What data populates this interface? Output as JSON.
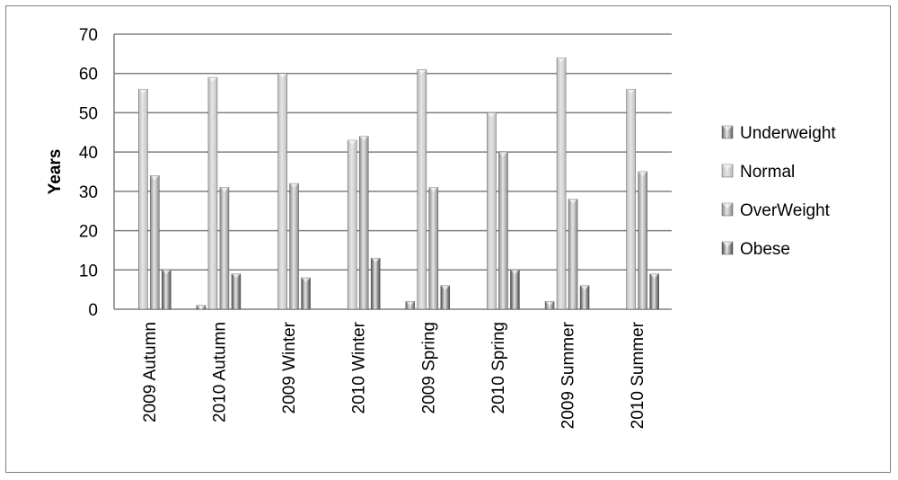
{
  "chart_data": {
    "type": "bar",
    "title": "",
    "xlabel": "",
    "ylabel": "Years",
    "ylim": [
      0,
      70
    ],
    "yticks": [
      0,
      10,
      20,
      30,
      40,
      50,
      60,
      70
    ],
    "grid": true,
    "legend_position": "right",
    "categories": [
      "2009 Autumn",
      "2010 Autumn",
      "2009 Winter",
      "2010 Winter",
      "2009 Spring",
      "2010 Spring",
      "2009 Summer",
      "2010 Summer"
    ],
    "series": [
      {
        "name": "Underweight",
        "color": "#5f5f5f",
        "values": [
          0,
          1,
          0,
          0,
          2,
          0,
          2,
          0
        ]
      },
      {
        "name": "Normal",
        "color": "#bdbdbd",
        "values": [
          56,
          59,
          60,
          43,
          61,
          50,
          64,
          56
        ]
      },
      {
        "name": "OverWeight",
        "color": "#8a8a8a",
        "values": [
          34,
          31,
          32,
          44,
          31,
          40,
          28,
          35
        ]
      },
      {
        "name": "Obese",
        "color": "#4a4a4a",
        "values": [
          10,
          9,
          8,
          13,
          6,
          10,
          6,
          9
        ]
      }
    ]
  }
}
